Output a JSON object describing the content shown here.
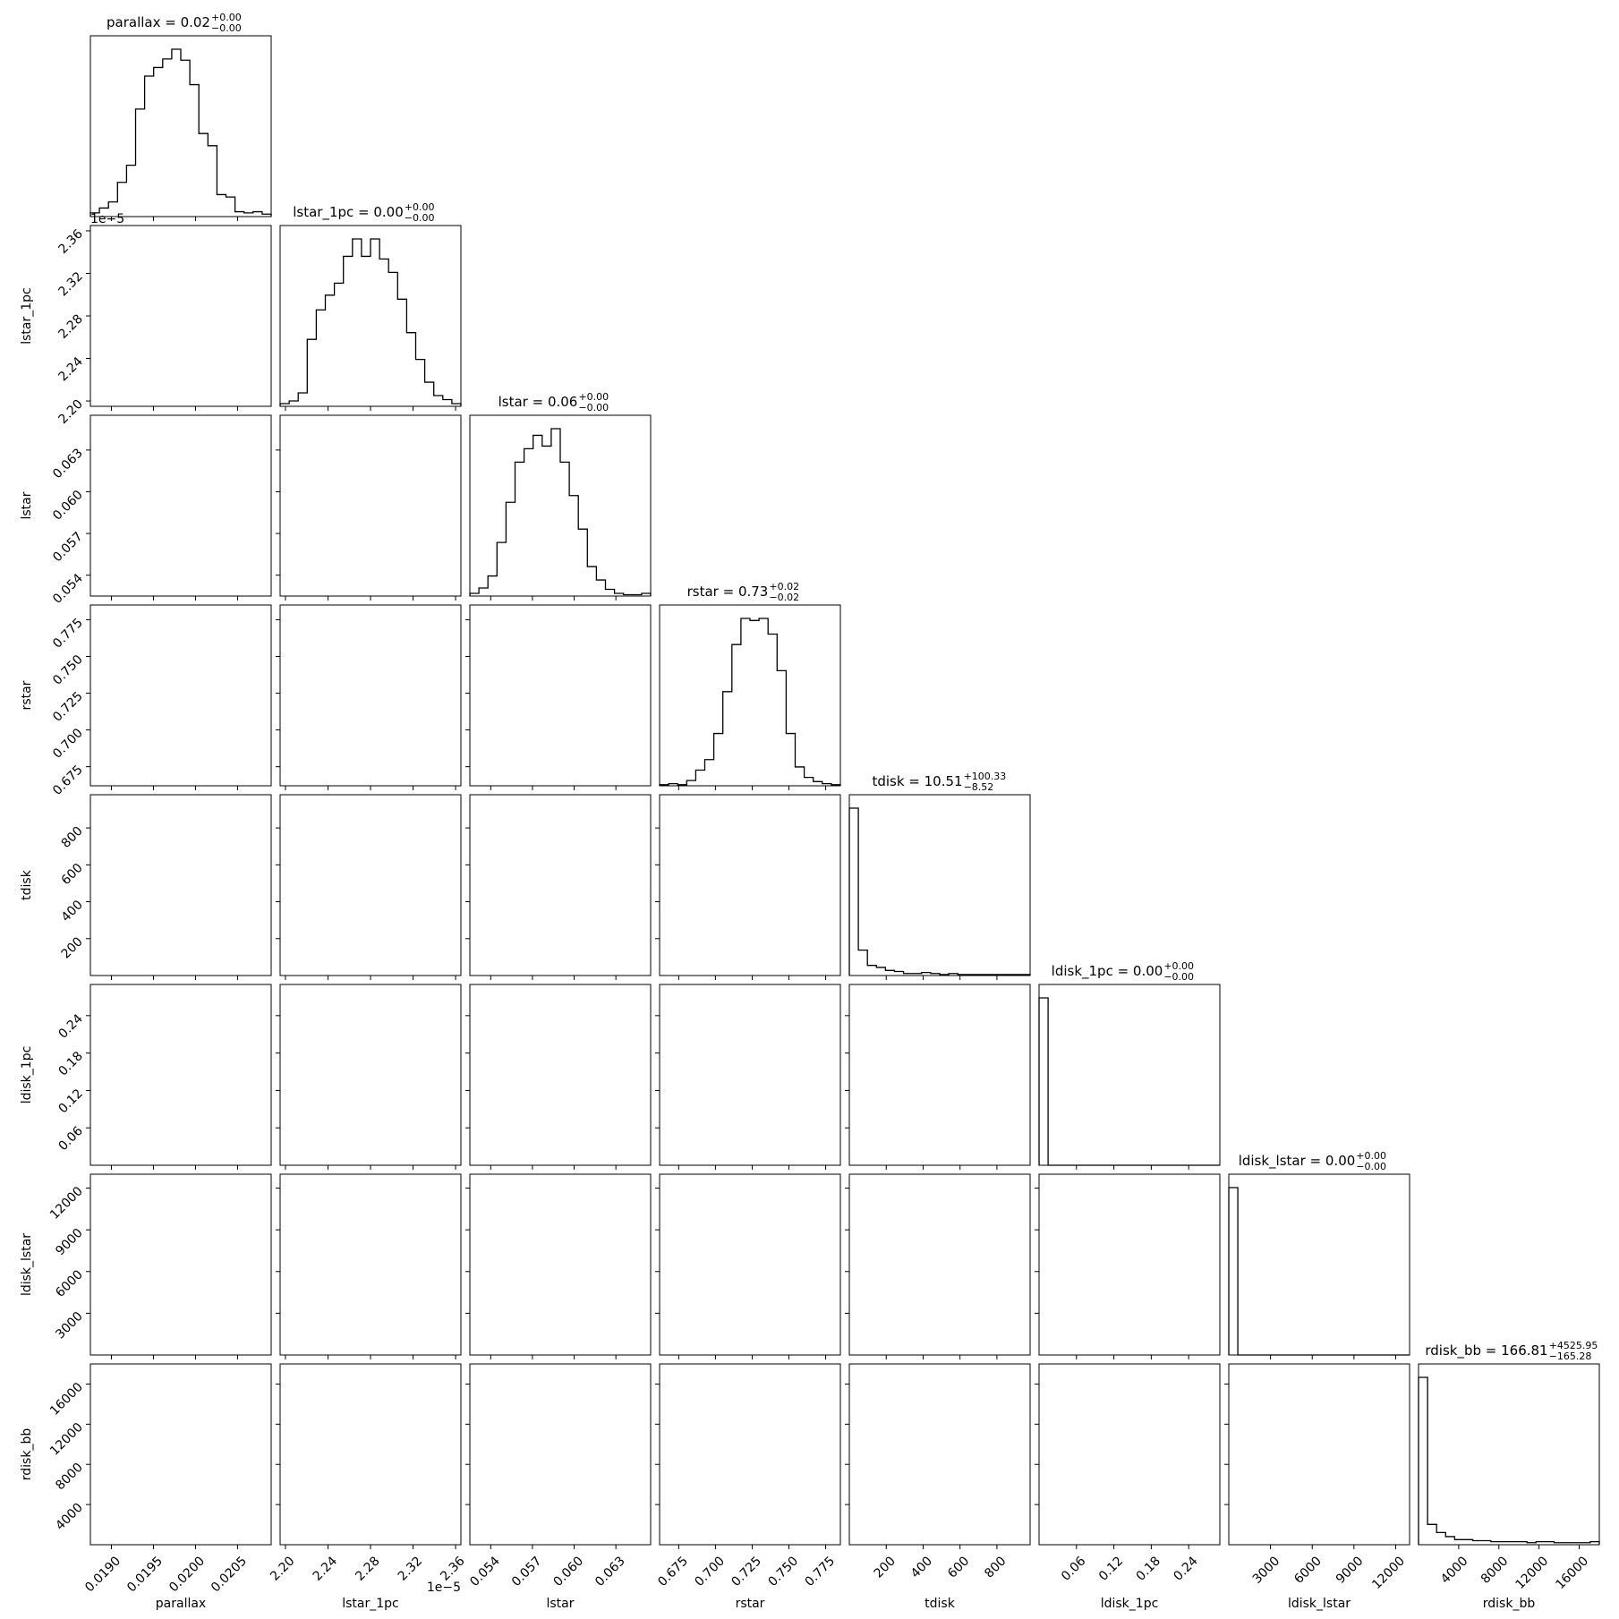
{
  "chart_data": {
    "type": "corner",
    "color": "#000000",
    "params": [
      {
        "name": "parallax",
        "title": {
          "text": "parallax = 0.02",
          "upper": "+0.00",
          "lower": "−0.00"
        },
        "lim": [
          0.01875,
          0.0209
        ],
        "ticks": [
          {
            "value": 0.019,
            "label": "0.0190"
          },
          0.0195,
          {
            "value": 0.02,
            "label": "0.0200"
          },
          {
            "value": 0.0205,
            "label": "0.0205"
          }
        ],
        "counts": [
          3,
          7,
          12,
          28,
          42,
          88,
          115,
          122,
          129,
          137,
          128,
          108,
          68,
          58,
          18,
          16,
          4,
          3,
          4,
          2
        ]
      },
      {
        "name": "lstar_1pc",
        "title": {
          "text": "lstar_1pc = 0.00",
          "upper": "+0.00",
          "lower": "−0.00"
        },
        "offset": "1e−5",
        "lim": [
          2.195,
          2.365
        ],
        "ticks": [
          {
            "value": 2.2,
            "label": "2.20"
          },
          2.24,
          2.28,
          2.32,
          2.36
        ],
        "counts": [
          2,
          4,
          10,
          50,
          72,
          83,
          92,
          112,
          125,
          112,
          125,
          110,
          100,
          80,
          55,
          35,
          18,
          8,
          5,
          2
        ]
      },
      {
        "name": "lstar",
        "title": {
          "text": "lstar = 0.06",
          "upper": "+0.00",
          "lower": "−0.00"
        },
        "lim": [
          0.0525,
          0.0655
        ],
        "ticks": [
          0.054,
          0.057,
          {
            "value": 0.06,
            "label": "0.060"
          },
          0.063
        ],
        "counts": [
          2,
          6,
          15,
          40,
          70,
          100,
          110,
          120,
          112,
          125,
          100,
          75,
          50,
          22,
          12,
          5,
          2,
          1,
          1,
          2
        ]
      },
      {
        "name": "rstar",
        "title": {
          "text": "rstar = 0.73",
          "upper": "+0.02",
          "lower": "−0.02"
        },
        "lim": [
          0.662,
          0.785
        ],
        "ticks": [
          0.675,
          {
            "value": 0.7,
            "label": "0.700"
          },
          0.725,
          {
            "value": 0.75,
            "label": "0.750"
          },
          0.775
        ],
        "counts": [
          1,
          2,
          1,
          5,
          15,
          25,
          50,
          90,
          135,
          160,
          158,
          160,
          145,
          110,
          50,
          18,
          8,
          4,
          2,
          1
        ]
      },
      {
        "name": "tdisk",
        "title": {
          "text": "tdisk = 10.51",
          "upper": "+100.33",
          "lower": "−8.52"
        },
        "lim": [
          0,
          980
        ],
        "ticks": [
          200,
          400,
          600,
          800
        ],
        "counts": [
          165,
          25,
          10,
          8,
          5,
          4,
          2,
          2,
          3,
          2,
          1,
          2,
          1,
          1,
          1,
          1,
          1,
          1,
          1,
          1
        ]
      },
      {
        "name": "ldisk_1pc",
        "title": {
          "text": "ldisk_1pc = 0.00",
          "upper": "+0.00",
          "lower": "−0.00"
        },
        "lim": [
          0,
          0.29
        ],
        "ticks": [
          0.06,
          0.12,
          0.18,
          0.24
        ],
        "counts": [
          170,
          0,
          0,
          0,
          0,
          0,
          0,
          0,
          0,
          0,
          0,
          0,
          0,
          0,
          0,
          0,
          0,
          0,
          0,
          0
        ]
      },
      {
        "name": "ldisk_lstar",
        "title": {
          "text": "ldisk_lstar = 0.00",
          "upper": "+0.00",
          "lower": "−0.00"
        },
        "lim": [
          0,
          13000
        ],
        "ticks": [
          3000,
          6000,
          9000,
          12000
        ],
        "counts": [
          165,
          0,
          0,
          0,
          0,
          0,
          0,
          0,
          0,
          0,
          0,
          0,
          0,
          0,
          0,
          0,
          0,
          0,
          0,
          0
        ]
      },
      {
        "name": "rdisk_bb",
        "title": {
          "text": "rdisk_bb = 166.81",
          "upper": "+4525.95",
          "lower": "−165.28"
        },
        "lim": [
          0,
          18000
        ],
        "ticks": [
          4000,
          8000,
          12000,
          16000
        ],
        "counts": [
          165,
          20,
          12,
          8,
          5,
          5,
          4,
          4,
          3,
          3,
          3,
          3,
          2,
          3,
          3,
          2,
          2,
          2,
          2,
          3
        ]
      }
    ]
  }
}
